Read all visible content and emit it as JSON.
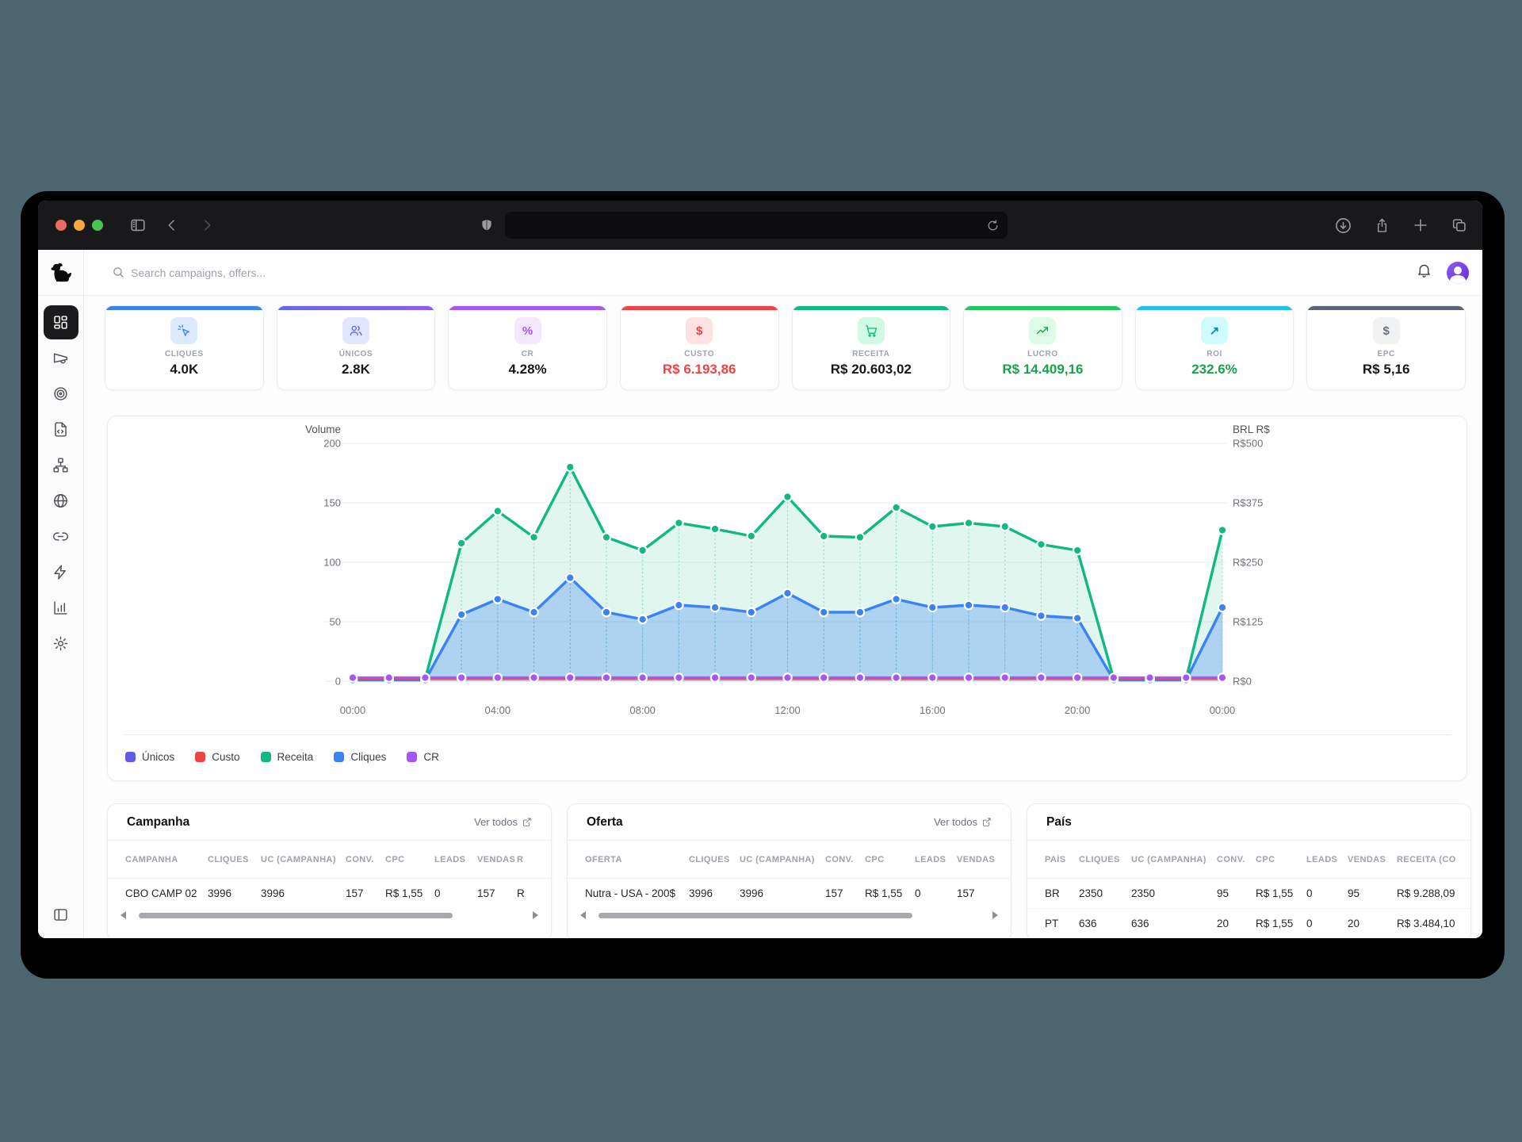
{
  "browser": {
    "traffic_lights": {
      "close": "#ee6a5e",
      "minimize": "#f3a73e",
      "zoom": "#46c554"
    },
    "url_value": "",
    "icons": [
      "sidebar-toggle",
      "back",
      "forward",
      "shield",
      "reload",
      "download",
      "share",
      "new-tab",
      "tabs-overview"
    ]
  },
  "header": {
    "search_placeholder": "Search campaigns, offers..."
  },
  "sidebar": {
    "items": [
      {
        "icon": "dashboard-grid",
        "active": true
      },
      {
        "icon": "megaphone",
        "active": false
      },
      {
        "icon": "target",
        "active": false
      },
      {
        "icon": "file-code",
        "active": false
      },
      {
        "icon": "network",
        "active": false
      },
      {
        "icon": "globe",
        "active": false
      },
      {
        "icon": "link",
        "active": false
      },
      {
        "icon": "zap",
        "active": false
      },
      {
        "icon": "bar-chart",
        "active": false
      },
      {
        "icon": "settings-gear",
        "active": false
      }
    ],
    "bottom_icon": "panel-left"
  },
  "stat_cards": [
    {
      "label": "CLIQUES",
      "value": "4.0K",
      "icon": "pointer-click",
      "accent": "#3b82f6",
      "chip_bg": "#dbeafe",
      "icon_color": "#3b82f6",
      "value_color": "#18181b"
    },
    {
      "label": "ÚNICOS",
      "value": "2.8K",
      "icon": "users",
      "accent": "linear-gradient(90deg,#6366f1,#8b5cf6)",
      "chip_bg": "#e0e7ff",
      "icon_color": "#6366f1",
      "value_color": "#18181b"
    },
    {
      "label": "CR",
      "value": "4.28%",
      "icon": "percent",
      "accent": "#a855f7",
      "chip_bg": "#f3e8ff",
      "icon_color": "#a855f7",
      "value_color": "#18181b"
    },
    {
      "label": "CUSTO",
      "value": "R$ 6.193,86",
      "icon": "dollar",
      "accent": "#ef4444",
      "chip_bg": "#fee2e2",
      "icon_color": "#ef4444",
      "value_color": "#ef4444"
    },
    {
      "label": "RECEITA",
      "value": "R$ 20.603,02",
      "icon": "cart",
      "accent": "#10b981",
      "chip_bg": "#d1fae5",
      "icon_color": "#10b981",
      "value_color": "#18181b"
    },
    {
      "label": "LUCRO",
      "value": "R$ 14.409,16",
      "icon": "trending-up",
      "accent": "#22c55e",
      "chip_bg": "#dcfce7",
      "icon_color": "#16a34a",
      "value_color": "#16a34a"
    },
    {
      "label": "ROI",
      "value": "232.6%",
      "icon": "arrow-up-right",
      "accent": "#22c0e8",
      "chip_bg": "#cffafe",
      "icon_color": "#0891b2",
      "value_color": "#16a34a"
    },
    {
      "label": "EPC",
      "value": "R$ 5,16",
      "icon": "dollar",
      "accent": "#5b6472",
      "chip_bg": "#f1f2f4",
      "icon_color": "#6b7280",
      "value_color": "#18181b"
    }
  ],
  "chart_data": {
    "type": "area",
    "title_left": "Volume",
    "title_right": "BRL R$",
    "y_left": {
      "min": 0,
      "max": 200,
      "ticks": [
        200,
        150,
        100,
        50,
        0
      ]
    },
    "y_right_labels": [
      "R$500",
      "R$375",
      "R$250",
      "R$125",
      "R$0"
    ],
    "x_ticks": [
      "00:00",
      "04:00",
      "08:00",
      "12:00",
      "16:00",
      "20:00",
      "00:00"
    ],
    "x_tick_positions": [
      0,
      4,
      8,
      12,
      16,
      20,
      24
    ],
    "points_per_hour": 1,
    "grid": true,
    "legend_position": "bottom",
    "series": [
      {
        "name": "Únicos",
        "color": "#6159e8",
        "dots": false,
        "droplines": false,
        "values": [
          1,
          1,
          1,
          56,
          69,
          58,
          87,
          58,
          52,
          64,
          62,
          58,
          74,
          58,
          58,
          69,
          62,
          64,
          62,
          55,
          53,
          1,
          1,
          1,
          62
        ]
      },
      {
        "name": "Custo",
        "color": "#ef4444",
        "dots": false,
        "droplines": false,
        "values": [
          2,
          2,
          2,
          2,
          2,
          2,
          2,
          2,
          2,
          2,
          2,
          2,
          2,
          2,
          2,
          2,
          2,
          2,
          2,
          2,
          2,
          2,
          2,
          2,
          2
        ]
      },
      {
        "name": "Receita",
        "color": "#10b981",
        "fill": "rgba(16,185,129,0.13)",
        "dots": true,
        "droplines": true,
        "values": [
          2,
          2,
          2,
          116,
          143,
          121,
          180,
          121,
          110,
          133,
          128,
          122,
          155,
          122,
          121,
          146,
          130,
          133,
          130,
          115,
          110,
          2,
          2,
          2,
          127
        ]
      },
      {
        "name": "Cliques",
        "color": "#3b82f6",
        "fill": "rgba(59,130,246,0.30)",
        "dots": true,
        "droplines": true,
        "values": [
          1,
          1,
          1,
          56,
          69,
          58,
          87,
          58,
          52,
          64,
          62,
          58,
          74,
          58,
          58,
          69,
          62,
          64,
          62,
          55,
          53,
          1,
          1,
          1,
          62
        ]
      },
      {
        "name": "CR",
        "color": "#a855f7",
        "dots": true,
        "droplines": false,
        "values": [
          3,
          3,
          3,
          3,
          3,
          3,
          3,
          3,
          3,
          3,
          3,
          3,
          3,
          3,
          3,
          3,
          3,
          3,
          3,
          3,
          3,
          3,
          3,
          3,
          3
        ]
      }
    ]
  },
  "tables": [
    {
      "id": "campanha",
      "title": "Campanha",
      "link_label": "Ver todos",
      "scrollbar": true,
      "columns": [
        "CAMPANHA",
        "CLIQUES",
        "UC (CAMPANHA)",
        "CONV.",
        "CPC",
        "LEADS",
        "VENDAS",
        "R"
      ],
      "rows": [
        [
          "CBO CAMP 02",
          "3996",
          "3996",
          "157",
          "R$ 1,55",
          "0",
          "157",
          "R"
        ]
      ]
    },
    {
      "id": "oferta",
      "title": "Oferta",
      "link_label": "Ver todos",
      "scrollbar": true,
      "columns": [
        "OFERTA",
        "CLIQUES",
        "UC (CAMPANHA)",
        "CONV.",
        "CPC",
        "LEADS",
        "VENDAS"
      ],
      "rows": [
        [
          "Nutra - USA - 200$",
          "3996",
          "3996",
          "157",
          "R$ 1,55",
          "0",
          "157"
        ]
      ]
    },
    {
      "id": "pais",
      "title": "País",
      "link_label": null,
      "scrollbar": false,
      "columns": [
        "PAÍS",
        "CLIQUES",
        "UC (CAMPANHA)",
        "CONV.",
        "CPC",
        "LEADS",
        "VENDAS",
        "RECEITA (CO"
      ],
      "rows": [
        [
          "BR",
          "2350",
          "2350",
          "95",
          "R$ 1,55",
          "0",
          "95",
          "R$ 9.288,09"
        ],
        [
          "PT",
          "636",
          "636",
          "20",
          "R$ 1,55",
          "0",
          "20",
          "R$ 3.484,10"
        ]
      ]
    }
  ]
}
